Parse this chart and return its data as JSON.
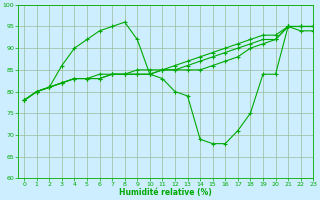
{
  "title": "",
  "xlabel": "Humidité relative (%)",
  "ylabel": "",
  "bg_color": "#cceeff",
  "grid_color": "#99bb99",
  "line_color": "#00aa00",
  "ylim": [
    60,
    100
  ],
  "xlim": [
    -0.5,
    23
  ],
  "yticks": [
    60,
    65,
    70,
    75,
    80,
    85,
    90,
    95,
    100
  ],
  "xticks": [
    0,
    1,
    2,
    3,
    4,
    5,
    6,
    7,
    8,
    9,
    10,
    11,
    12,
    13,
    14,
    15,
    16,
    17,
    18,
    19,
    20,
    21,
    22,
    23
  ],
  "series": [
    [
      78,
      80,
      81,
      86,
      90,
      92,
      94,
      95,
      96,
      92,
      84,
      83,
      80,
      79,
      69,
      68,
      68,
      71,
      75,
      84,
      84,
      95,
      94,
      94
    ],
    [
      78,
      80,
      81,
      82,
      83,
      83,
      84,
      84,
      84,
      85,
      85,
      85,
      85,
      85,
      85,
      86,
      87,
      88,
      90,
      91,
      92,
      95,
      95,
      95
    ],
    [
      78,
      80,
      81,
      82,
      83,
      83,
      83,
      84,
      84,
      84,
      84,
      85,
      85,
      86,
      87,
      88,
      89,
      90,
      91,
      92,
      92,
      95,
      95,
      95
    ],
    [
      78,
      80,
      81,
      82,
      83,
      83,
      83,
      84,
      84,
      84,
      84,
      85,
      86,
      87,
      88,
      89,
      90,
      91,
      92,
      93,
      93,
      95,
      95,
      95
    ]
  ]
}
